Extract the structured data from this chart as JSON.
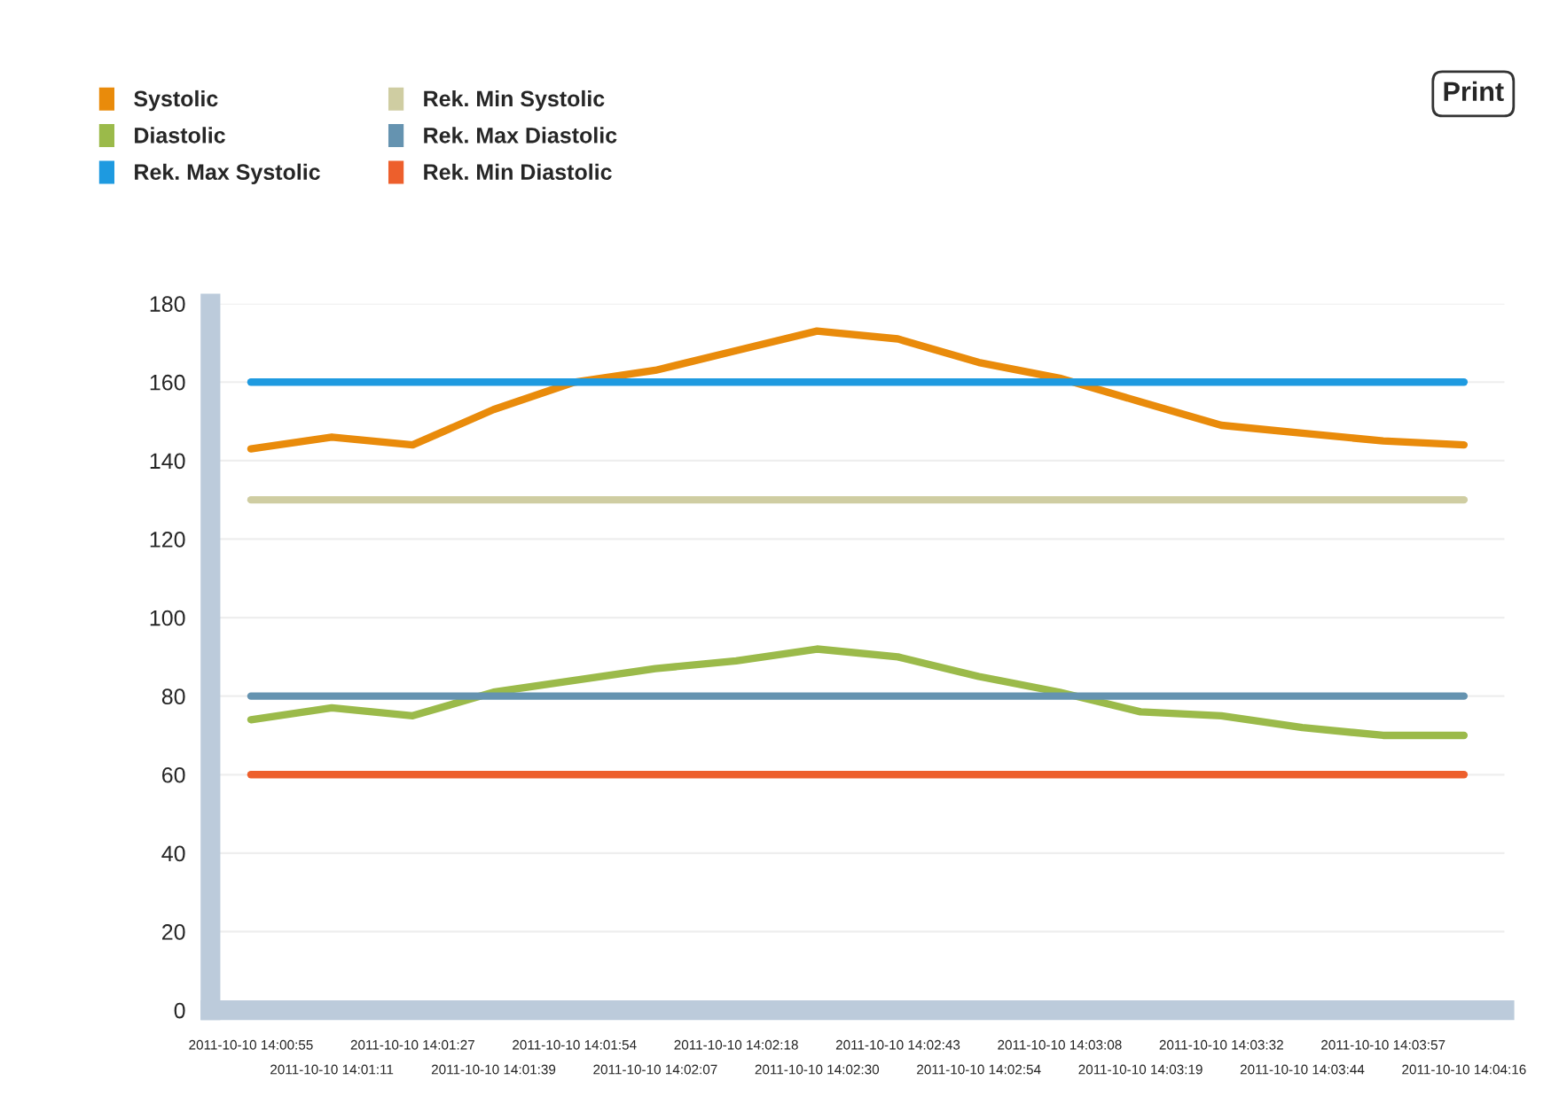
{
  "chart_data": {
    "type": "line",
    "categories": [
      "2011-10-10 14:00:55",
      "2011-10-10 14:01:11",
      "2011-10-10 14:01:27",
      "2011-10-10 14:01:39",
      "2011-10-10 14:01:54",
      "2011-10-10 14:02:07",
      "2011-10-10 14:02:18",
      "2011-10-10 14:02:30",
      "2011-10-10 14:02:43",
      "2011-10-10 14:02:54",
      "2011-10-10 14:03:08",
      "2011-10-10 14:03:19",
      "2011-10-10 14:03:32",
      "2011-10-10 14:03:44",
      "2011-10-10 14:03:57",
      "2011-10-10 14:04:16"
    ],
    "series": [
      {
        "name": "Systolic",
        "color": "#e98b0b",
        "values": [
          143,
          146,
          144,
          153,
          160,
          163,
          168,
          173,
          171,
          165,
          161,
          155,
          149,
          147,
          145,
          144
        ]
      },
      {
        "name": "Diastolic",
        "color": "#9bba4a",
        "values": [
          74,
          77,
          75,
          81,
          84,
          87,
          89,
          92,
          90,
          85,
          81,
          76,
          75,
          72,
          70,
          70
        ]
      },
      {
        "name": "Rek. Max Systolic",
        "color": "#1e9ae0",
        "values": [
          160,
          160,
          160,
          160,
          160,
          160,
          160,
          160,
          160,
          160,
          160,
          160,
          160,
          160,
          160,
          160
        ]
      },
      {
        "name": "Rek. Min Systolic",
        "color": "#cfcda2",
        "values": [
          130,
          130,
          130,
          130,
          130,
          130,
          130,
          130,
          130,
          130,
          130,
          130,
          130,
          130,
          130,
          130
        ]
      },
      {
        "name": "Rek. Max Diastolic",
        "color": "#6593b0",
        "values": [
          80,
          80,
          80,
          80,
          80,
          80,
          80,
          80,
          80,
          80,
          80,
          80,
          80,
          80,
          80,
          80
        ]
      },
      {
        "name": "Rek. Min Diastolic",
        "color": "#ed5f2c",
        "values": [
          60,
          60,
          60,
          60,
          60,
          60,
          60,
          60,
          60,
          60,
          60,
          60,
          60,
          60,
          60,
          60
        ]
      }
    ],
    "ylim": [
      0,
      180
    ],
    "yticks": [
      0,
      20,
      40,
      60,
      80,
      100,
      120,
      140,
      160,
      180
    ],
    "grid": "y",
    "legend": "top left",
    "marker": "none",
    "line_style": "solid",
    "annotations": [
      "Print"
    ]
  }
}
